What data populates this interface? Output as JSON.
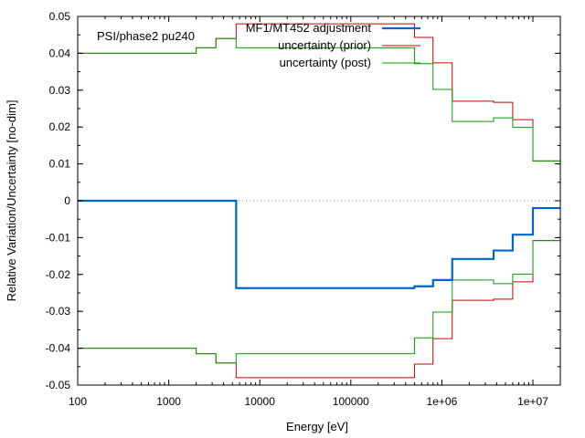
{
  "chart_data": {
    "type": "line",
    "title": "",
    "annotation": "PSI/phase2 pu240",
    "xlabel": "Energy [eV]",
    "ylabel": "Relative Variation/Uncertainty [no-dim]",
    "xscale": "log",
    "xlim": [
      100,
      20000000
    ],
    "ylim": [
      -0.05,
      0.05
    ],
    "x_ticks": [
      {
        "value": 100,
        "label": "100"
      },
      {
        "value": 1000,
        "label": "1000"
      },
      {
        "value": 10000,
        "label": "10000"
      },
      {
        "value": 100000,
        "label": "100000"
      },
      {
        "value": 1000000,
        "label": "1e+06"
      },
      {
        "value": 10000000,
        "label": "1e+07"
      }
    ],
    "y_ticks": [
      {
        "value": -0.05,
        "label": "-0.05"
      },
      {
        "value": -0.04,
        "label": "-0.04"
      },
      {
        "value": -0.03,
        "label": "-0.03"
      },
      {
        "value": -0.02,
        "label": "-0.02"
      },
      {
        "value": -0.01,
        "label": "-0.01"
      },
      {
        "value": 0,
        "label": "0"
      },
      {
        "value": 0.01,
        "label": "0.01"
      },
      {
        "value": 0.02,
        "label": "0.02"
      },
      {
        "value": 0.03,
        "label": "0.03"
      },
      {
        "value": 0.04,
        "label": "0.04"
      },
      {
        "value": 0.05,
        "label": "0.05"
      }
    ],
    "zero_line": true,
    "legend_position": "top-right",
    "bin_edges": [
      100,
      2000,
      3300,
      5500,
      500000,
      800000,
      1300000,
      3700000,
      6000000,
      10000000,
      20000000
    ],
    "series": [
      {
        "name": "MF1/MT452 adjustment",
        "color": "#0066cc",
        "style": "step",
        "width": 2.2,
        "values": [
          0,
          0,
          0,
          -0.0237,
          -0.0232,
          -0.0215,
          -0.0158,
          -0.0135,
          -0.0092,
          -0.002
        ]
      },
      {
        "name": "uncertainty (prior)",
        "color": "#cc0000",
        "style": "step-symmetric",
        "width": 1.0,
        "values": [
          0.04,
          0.0415,
          0.044,
          0.048,
          0.0443,
          0.0374,
          0.027,
          0.0267,
          0.022,
          0.0108
        ]
      },
      {
        "name": "uncertainty (post)",
        "color": "#00a000",
        "style": "step-symmetric",
        "width": 1.0,
        "values": [
          0.04,
          0.0415,
          0.044,
          0.0415,
          0.0372,
          0.0302,
          0.0215,
          0.0225,
          0.0199,
          0.0108
        ]
      }
    ]
  }
}
